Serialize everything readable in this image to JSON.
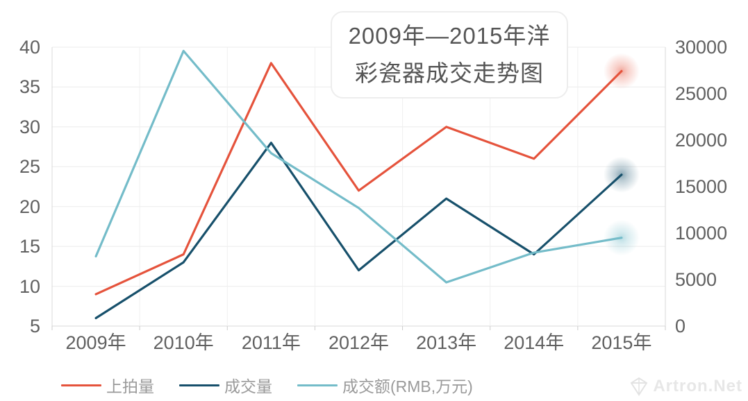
{
  "chart_data": {
    "type": "line",
    "title": "2009年—2015年洋彩瓷器成交走势图",
    "title_lines": [
      "2009年—2015年洋",
      "彩瓷器成交走势图"
    ],
    "categories": [
      "2009年",
      "2010年",
      "2011年",
      "2012年",
      "2013年",
      "2014年",
      "2015年"
    ],
    "series": [
      {
        "name": "上拍量",
        "axis": "left",
        "color": "#e5533c",
        "values": [
          9,
          14,
          38,
          22,
          30,
          26,
          37
        ]
      },
      {
        "name": "成交量",
        "axis": "left",
        "color": "#17506b",
        "values": [
          6,
          13,
          28,
          12,
          21,
          14,
          24
        ]
      },
      {
        "name": "成交额(RMB,万元)",
        "axis": "right",
        "color": "#74bcc9",
        "values": [
          7500,
          29600,
          18600,
          12700,
          4700,
          7900,
          9500
        ]
      }
    ],
    "left_axis": {
      "min": 5,
      "max": 40,
      "ticks": [
        40,
        35,
        30,
        25,
        20,
        15,
        10,
        5
      ]
    },
    "right_axis": {
      "min": 0,
      "max": 30000,
      "ticks": [
        30000,
        25000,
        20000,
        15000,
        10000,
        5000,
        0
      ]
    },
    "grid": true,
    "legend_position": "bottom-left",
    "endpoint_glow": true
  },
  "watermark": {
    "text": "Artron.Net",
    "icon": "artron-logo-icon"
  },
  "colors": {
    "background": "#ffffff",
    "grid_h": "#ebebeb",
    "grid_v": "#efefef",
    "axis_line": "#d9d9d9",
    "tick_mark": "#cccccc",
    "axis_label": "#606060",
    "legend_label": "#9a9a9a",
    "title_text": "#555555",
    "title_border": "#ededed",
    "watermark": "#e7e7e7"
  }
}
